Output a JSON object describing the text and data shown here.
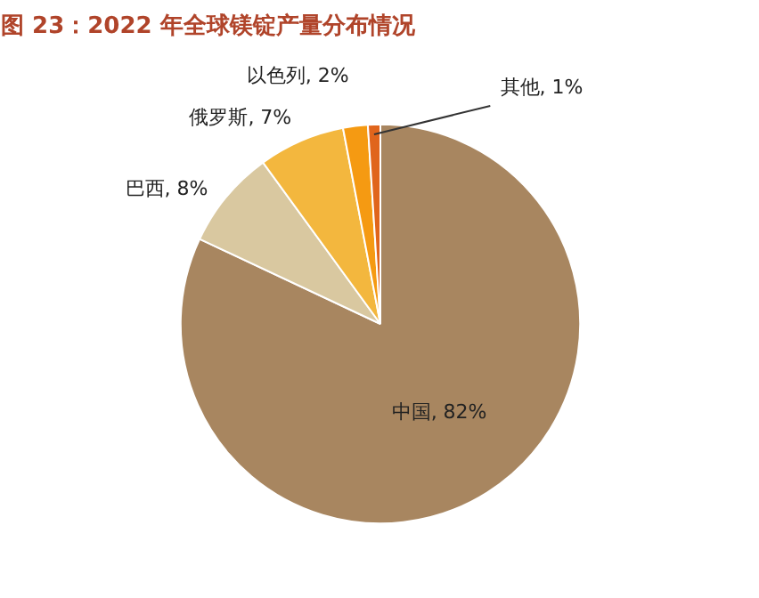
{
  "chart_data": {
    "type": "pie",
    "title": "图 23：2022 年全球镁锭产量分布情况",
    "categories": [
      "中国",
      "巴西",
      "俄罗斯",
      "以色列",
      "其他"
    ],
    "values": [
      82,
      8,
      7,
      2,
      1
    ],
    "colors": [
      "#a88660",
      "#d9c8a0",
      "#f3b73e",
      "#f59a12",
      "#e0651c"
    ],
    "value_labels": [
      ", 82%",
      ", 8%",
      ", 7%",
      ", 2%",
      ", 1%"
    ]
  }
}
